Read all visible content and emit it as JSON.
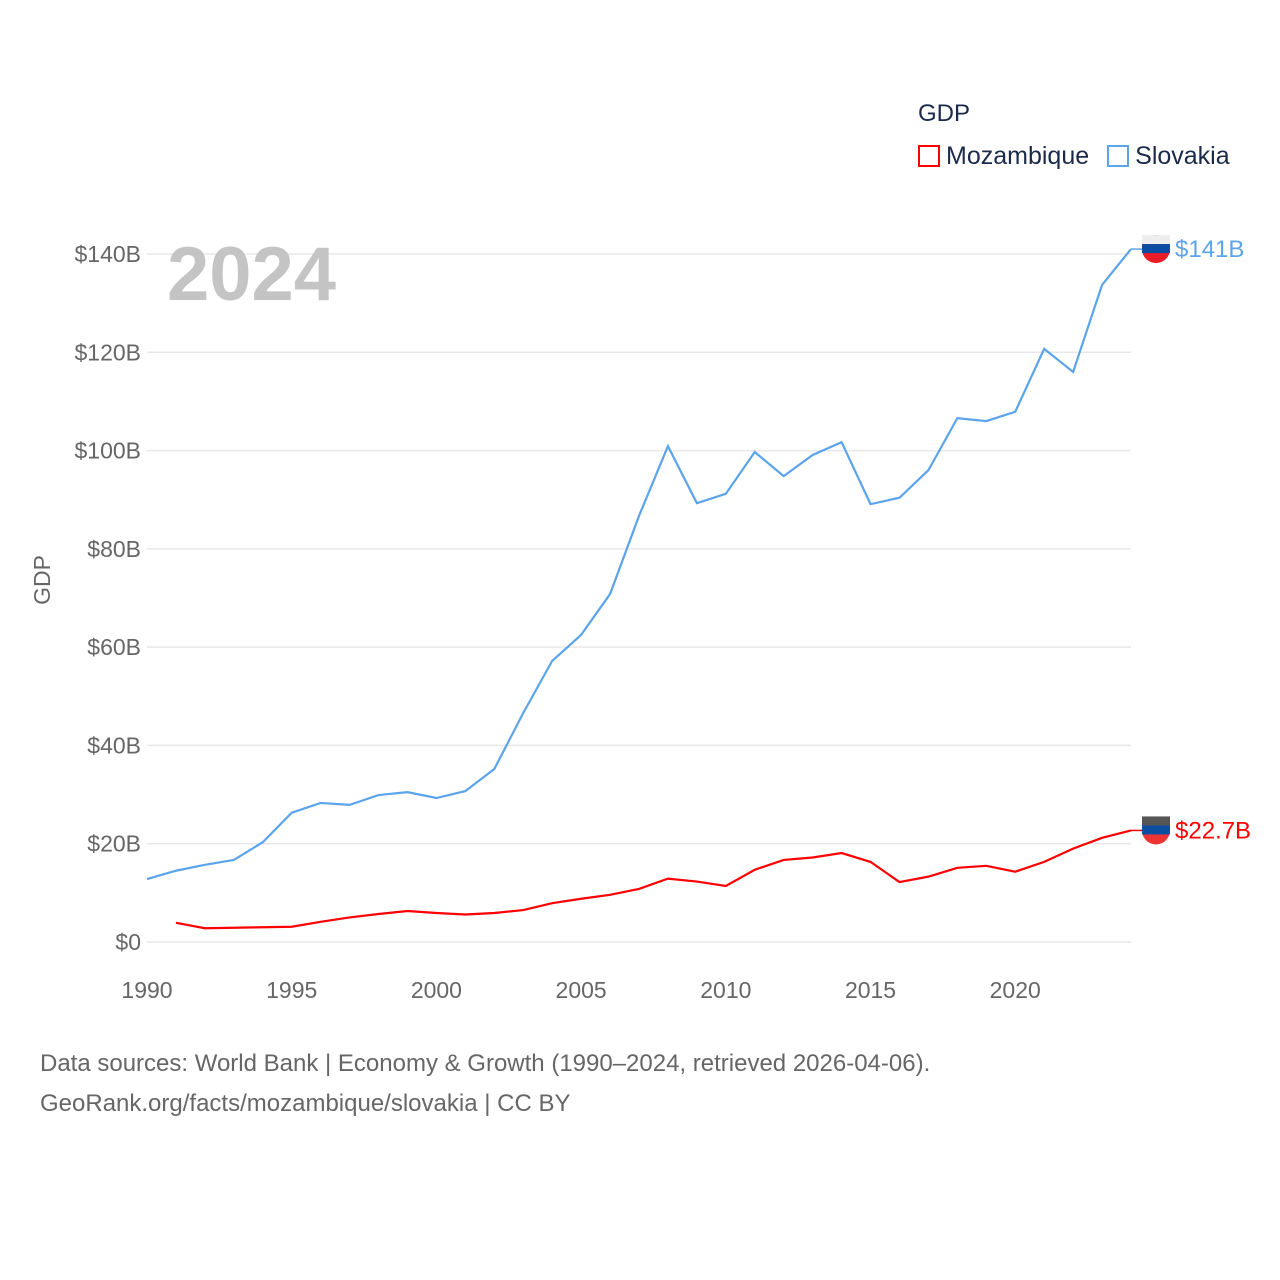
{
  "chart_data": {
    "type": "line",
    "title": "GDP",
    "ylabel": "GDP",
    "xlabel": "",
    "year_label": "2024",
    "xlim": [
      1990,
      2024
    ],
    "ylim": [
      0,
      140
    ],
    "x_ticks": [
      1990,
      1995,
      2000,
      2005,
      2010,
      2015,
      2020
    ],
    "y_ticks": [
      0,
      20,
      40,
      60,
      80,
      100,
      120,
      140
    ],
    "y_tick_labels": [
      "$0",
      "$20B",
      "$40B",
      "$60B",
      "$80B",
      "$100B",
      "$120B",
      "$140B"
    ],
    "grid": true,
    "legend_position": "top-right",
    "series": [
      {
        "name": "Mozambique",
        "color": "#ff0000",
        "end_label": "$22.7B",
        "start_year": 1991,
        "values": [
          3.9,
          2.8,
          2.9,
          3.0,
          3.1,
          4.1,
          5.0,
          5.7,
          6.3,
          5.9,
          5.6,
          5.9,
          6.5,
          7.9,
          8.8,
          9.6,
          10.8,
          12.9,
          12.3,
          11.4,
          14.7,
          16.7,
          17.2,
          18.1,
          16.3,
          12.2,
          13.3,
          15.1,
          15.5,
          14.3,
          16.3,
          19.0,
          21.2,
          22.7
        ]
      },
      {
        "name": "Slovakia",
        "color": "#5ba4ec",
        "end_label": "$141B",
        "start_year": 1990,
        "values": [
          12.8,
          14.5,
          15.7,
          16.7,
          20.3,
          26.3,
          28.3,
          27.9,
          29.9,
          30.5,
          29.3,
          30.7,
          35.2,
          46.6,
          57.2,
          62.5,
          70.8,
          86.7,
          100.9,
          89.3,
          91.2,
          99.7,
          94.8,
          99.1,
          101.7,
          89.1,
          90.4,
          96.0,
          106.6,
          106.0,
          107.9,
          120.7,
          116.0,
          133.7,
          141
        ]
      }
    ]
  },
  "legend": {
    "title": "GDP",
    "items": [
      "Mozambique",
      "Slovakia"
    ]
  },
  "source": {
    "line1": "Data sources: World Bank | Economy & Growth (1990–2024, retrieved 2026-04-06).",
    "line2": "GeoRank.org/facts/mozambique/slovakia | CC BY"
  }
}
